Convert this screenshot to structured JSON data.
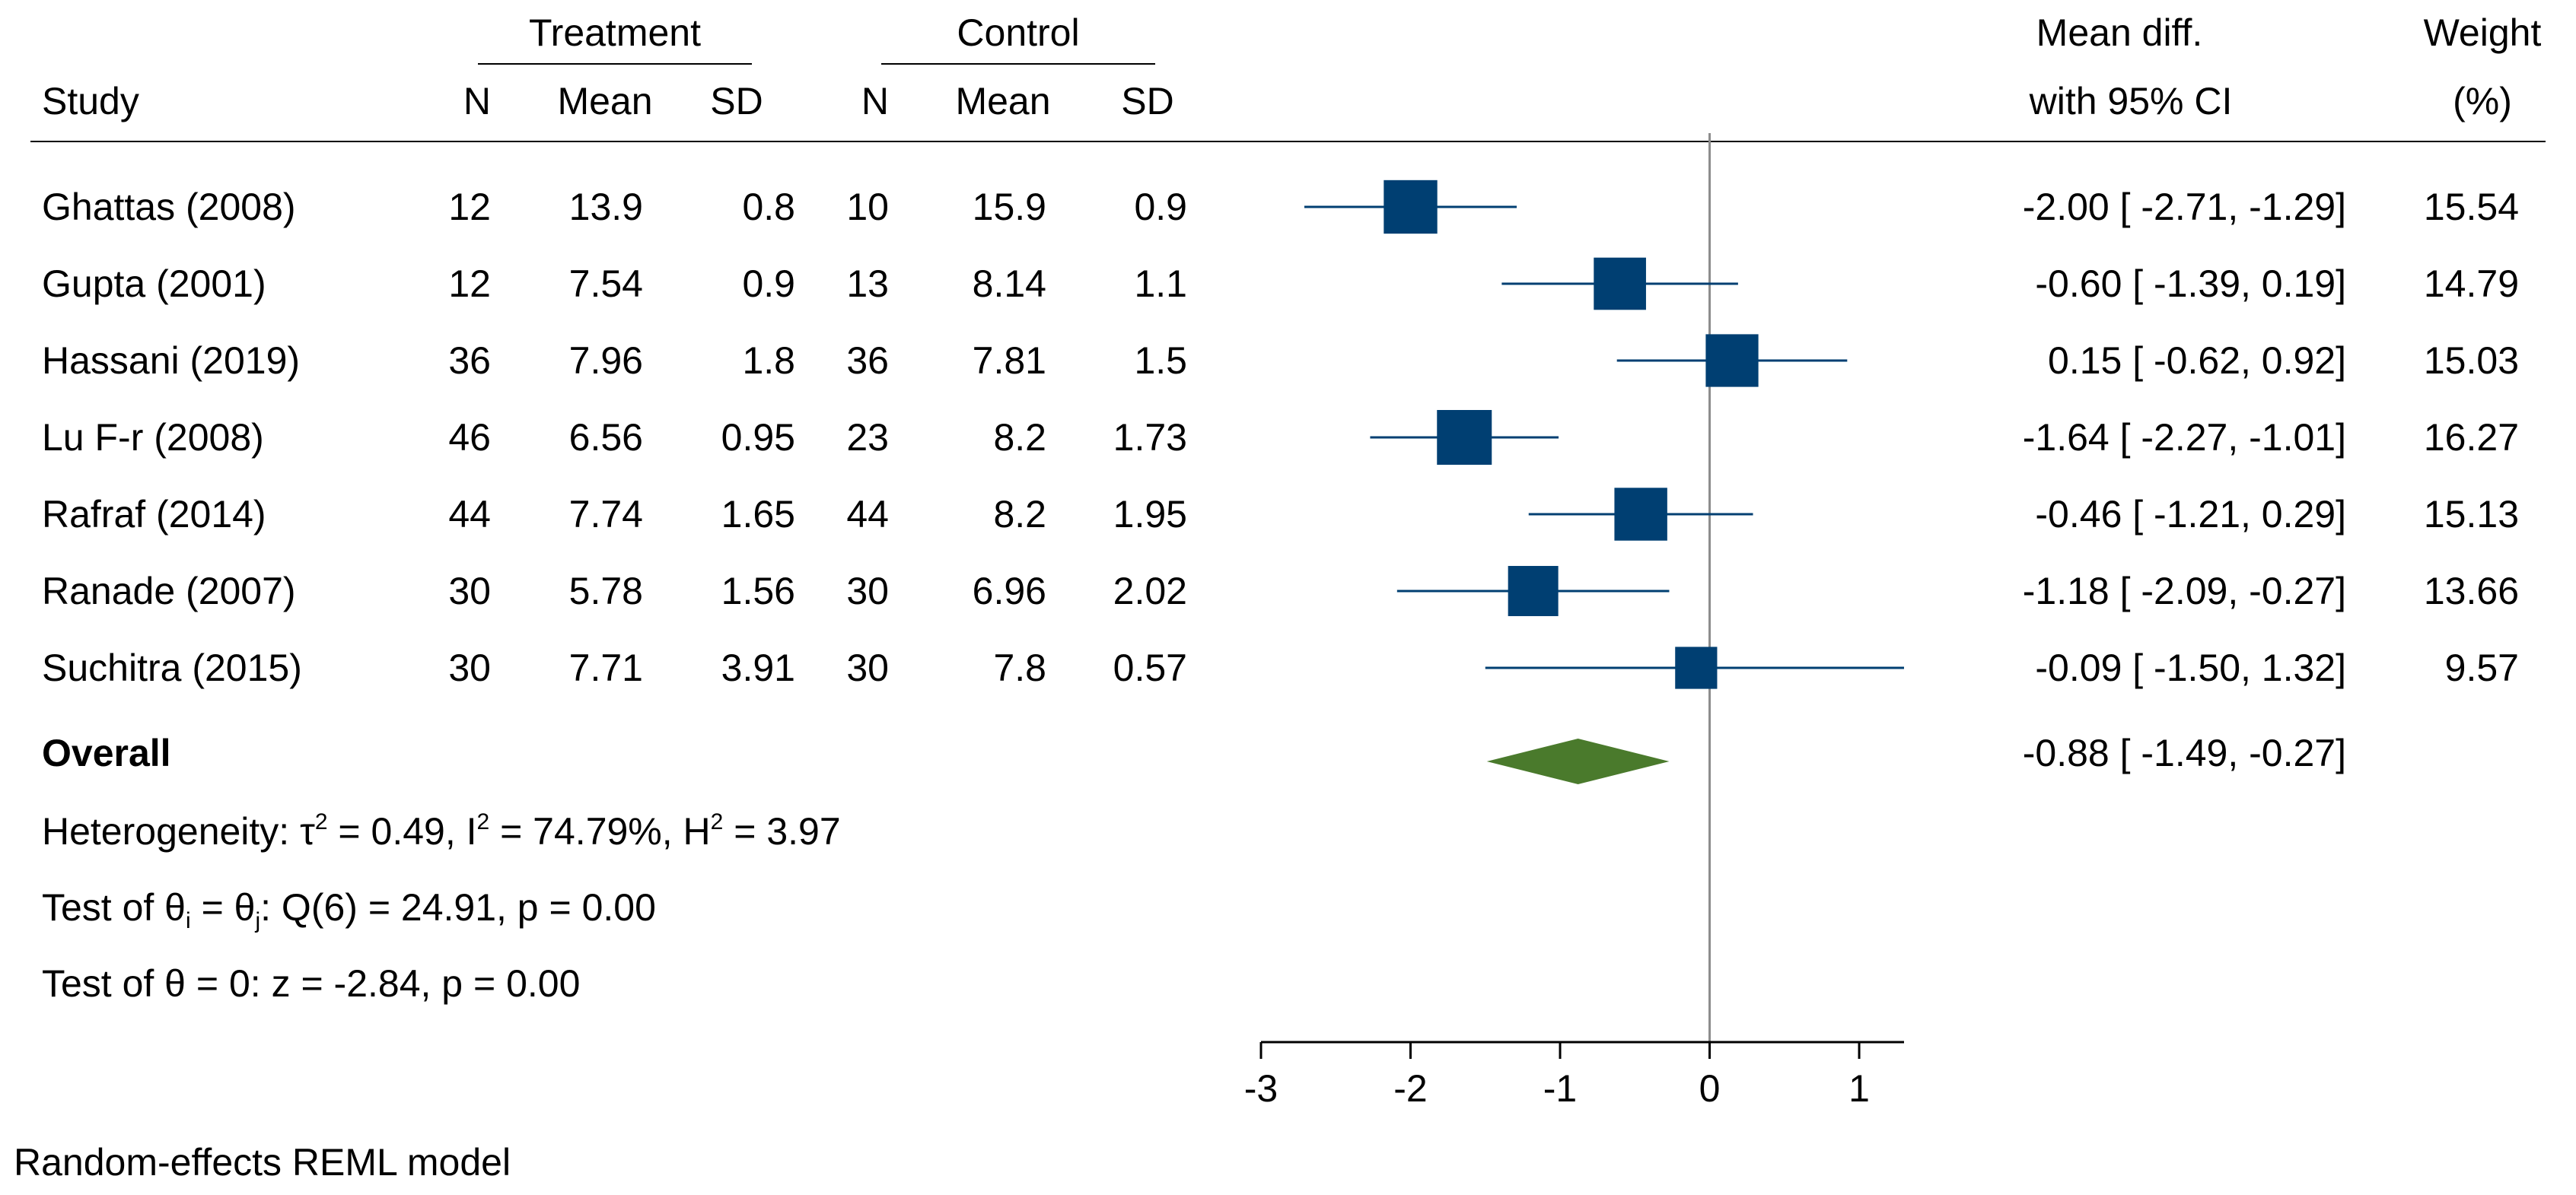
{
  "chart_data": {
    "type": "forest",
    "model_note": "Random-effects REML model",
    "group_headers": {
      "treatment": "Treatment",
      "control": "Control"
    },
    "column_headers": {
      "study": "Study",
      "n": "N",
      "mean": "Mean",
      "sd": "SD",
      "n2": "N",
      "mean2": "Mean",
      "sd2": "SD",
      "md_line1": "Mean diff.",
      "md_line2": "with 95% CI",
      "w_line1": "Weight",
      "w_line2": "(%)"
    },
    "studies": [
      {
        "name": "Ghattas (2008)",
        "t_n": "12",
        "t_mean": "13.9",
        "t_sd": "0.8",
        "c_n": "10",
        "c_mean": "15.9",
        "c_sd": "0.9",
        "md": -2.0,
        "lo": -2.71,
        "hi": -1.29,
        "weight": 15.54,
        "md_text": "-2.00 [ -2.71,  -1.29]",
        "weight_text": "15.54"
      },
      {
        "name": "Gupta (2001)",
        "t_n": "12",
        "t_mean": "7.54",
        "t_sd": "0.9",
        "c_n": "13",
        "c_mean": "8.14",
        "c_sd": "1.1",
        "md": -0.6,
        "lo": -1.39,
        "hi": 0.19,
        "weight": 14.79,
        "md_text": "-0.60 [ -1.39,   0.19]",
        "weight_text": "14.79"
      },
      {
        "name": "Hassani (2019)",
        "t_n": "36",
        "t_mean": "7.96",
        "t_sd": "1.8",
        "c_n": "36",
        "c_mean": "7.81",
        "c_sd": "1.5",
        "md": 0.15,
        "lo": -0.62,
        "hi": 0.92,
        "weight": 15.03,
        "md_text": "0.15 [ -0.62,   0.92]",
        "weight_text": "15.03"
      },
      {
        "name": "Lu F-r (2008)",
        "t_n": "46",
        "t_mean": "6.56",
        "t_sd": "0.95",
        "c_n": "23",
        "c_mean": "8.2",
        "c_sd": "1.73",
        "md": -1.64,
        "lo": -2.27,
        "hi": -1.01,
        "weight": 16.27,
        "md_text": "-1.64 [ -2.27,  -1.01]",
        "weight_text": "16.27"
      },
      {
        "name": "Rafraf (2014)",
        "t_n": "44",
        "t_mean": "7.74",
        "t_sd": "1.65",
        "c_n": "44",
        "c_mean": "8.2",
        "c_sd": "1.95",
        "md": -0.46,
        "lo": -1.21,
        "hi": 0.29,
        "weight": 15.13,
        "md_text": "-0.46 [ -1.21,   0.29]",
        "weight_text": "15.13"
      },
      {
        "name": "Ranade (2007)",
        "t_n": "30",
        "t_mean": "5.78",
        "t_sd": "1.56",
        "c_n": "30",
        "c_mean": "6.96",
        "c_sd": "2.02",
        "md": -1.18,
        "lo": -2.09,
        "hi": -0.27,
        "weight": 13.66,
        "md_text": "-1.18 [ -2.09,  -0.27]",
        "weight_text": "13.66"
      },
      {
        "name": "Suchitra (2015)",
        "t_n": "30",
        "t_mean": "7.71",
        "t_sd": "3.91",
        "c_n": "30",
        "c_mean": "7.8",
        "c_sd": "0.57",
        "md": -0.09,
        "lo": -1.5,
        "hi": 1.32,
        "weight": 9.57,
        "md_text": "-0.09 [ -1.50,   1.32]",
        "weight_text": "9.57"
      }
    ],
    "overall": {
      "label": "Overall",
      "md": -0.88,
      "lo": -1.49,
      "hi": -0.27,
      "md_text": "-0.88 [ -1.49,  -0.27]"
    },
    "stats": {
      "heterogeneity": {
        "prefix": "Heterogeneity: τ",
        "sup1": "2",
        "mid1": " = 0.49, I",
        "sup2": "2",
        "mid2": " = 74.79%, H",
        "sup3": "2",
        "suffix": " = 3.97"
      },
      "test_ij": {
        "prefix": "Test of θ",
        "sub1": "i",
        "mid": " = θ",
        "sub2": "j",
        "suffix": ": Q(6) = 24.91, p = 0.00"
      },
      "test_zero": "Test of θ = 0: z = -2.84, p = 0.00"
    },
    "x_axis": {
      "min": -3,
      "max": 1.3,
      "ticks": [
        -3,
        -2,
        -1,
        0,
        1
      ],
      "tick_labels": [
        "-3",
        "-2",
        "-1",
        "0",
        "1"
      ],
      "null_line": 0
    },
    "colors": {
      "study_marker": "#003f72",
      "overall_diamond": "#4a7a2c",
      "null_line": "#8c8c8c",
      "axis": "#000000"
    }
  }
}
